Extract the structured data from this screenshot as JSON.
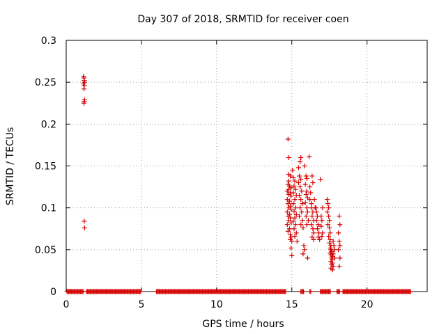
{
  "chart_data": {
    "type": "scatter",
    "title": "Day 307 of 2018, SRMTID for receiver coen",
    "xlabel": "GPS time / hours",
    "ylabel": "SRMTID / TECUs",
    "xlim": [
      0,
      24
    ],
    "ylim": [
      0,
      0.3
    ],
    "xticks": [
      0,
      5,
      10,
      15,
      20
    ],
    "xtick_labels": [
      "0",
      "5",
      "10",
      "15",
      "20"
    ],
    "yticks": [
      0,
      0.05,
      0.1,
      0.15,
      0.2,
      0.25,
      0.3
    ],
    "ytick_labels": [
      "0",
      "0.05",
      "0.1",
      "0.15",
      "0.2",
      "0.25",
      "0.3"
    ],
    "grid": true,
    "marker": "+",
    "color": "#d40000",
    "series": [
      {
        "name": "SRMTID",
        "zero_runs": [
          [
            0.05,
            1.15
          ],
          [
            1.35,
            5.0
          ],
          [
            6.0,
            14.6
          ],
          [
            15.6,
            15.8
          ],
          [
            16.2,
            16.3
          ],
          [
            16.9,
            17.6
          ],
          [
            18.0,
            18.2
          ],
          [
            18.4,
            22.9
          ]
        ],
        "points": [
          [
            1.15,
            0.257
          ],
          [
            1.18,
            0.255
          ],
          [
            1.2,
            0.252
          ],
          [
            1.22,
            0.25
          ],
          [
            1.15,
            0.248
          ],
          [
            1.2,
            0.246
          ],
          [
            1.18,
            0.242
          ],
          [
            1.22,
            0.229
          ],
          [
            1.2,
            0.227
          ],
          [
            1.18,
            0.225
          ],
          [
            1.2,
            0.084
          ],
          [
            1.22,
            0.076
          ],
          [
            14.75,
            0.182
          ],
          [
            14.8,
            0.16
          ],
          [
            15.05,
            0.145
          ],
          [
            14.8,
            0.14
          ],
          [
            14.9,
            0.138
          ],
          [
            14.8,
            0.132
          ],
          [
            14.75,
            0.128
          ],
          [
            14.85,
            0.126
          ],
          [
            14.95,
            0.124
          ],
          [
            14.8,
            0.122
          ],
          [
            14.7,
            0.12
          ],
          [
            14.9,
            0.118
          ],
          [
            14.8,
            0.116
          ],
          [
            14.95,
            0.114
          ],
          [
            14.7,
            0.11
          ],
          [
            14.85,
            0.108
          ],
          [
            14.75,
            0.105
          ],
          [
            14.9,
            0.102
          ],
          [
            14.8,
            0.1
          ],
          [
            14.95,
            0.098
          ],
          [
            14.7,
            0.095
          ],
          [
            14.85,
            0.092
          ],
          [
            14.75,
            0.09
          ],
          [
            14.9,
            0.088
          ],
          [
            14.8,
            0.085
          ],
          [
            14.95,
            0.082
          ],
          [
            14.7,
            0.08
          ],
          [
            14.85,
            0.075
          ],
          [
            14.75,
            0.072
          ],
          [
            14.9,
            0.068
          ],
          [
            14.95,
            0.065
          ],
          [
            14.9,
            0.062
          ],
          [
            15.0,
            0.06
          ],
          [
            14.95,
            0.052
          ],
          [
            15.0,
            0.043
          ],
          [
            15.1,
            0.136
          ],
          [
            15.2,
            0.132
          ],
          [
            15.15,
            0.126
          ],
          [
            15.25,
            0.122
          ],
          [
            15.1,
            0.118
          ],
          [
            15.3,
            0.115
          ],
          [
            15.2,
            0.11
          ],
          [
            15.1,
            0.105
          ],
          [
            15.25,
            0.1
          ],
          [
            15.15,
            0.096
          ],
          [
            15.3,
            0.092
          ],
          [
            15.2,
            0.088
          ],
          [
            15.1,
            0.084
          ],
          [
            15.25,
            0.08
          ],
          [
            15.15,
            0.075
          ],
          [
            15.3,
            0.07
          ],
          [
            15.2,
            0.066
          ],
          [
            15.35,
            0.06
          ],
          [
            15.45,
            0.148
          ],
          [
            15.55,
            0.155
          ],
          [
            15.6,
            0.16
          ],
          [
            15.5,
            0.138
          ],
          [
            15.6,
            0.134
          ],
          [
            15.45,
            0.13
          ],
          [
            15.55,
            0.125
          ],
          [
            15.65,
            0.12
          ],
          [
            15.5,
            0.115
          ],
          [
            15.6,
            0.11
          ],
          [
            15.7,
            0.105
          ],
          [
            15.55,
            0.1
          ],
          [
            15.65,
            0.095
          ],
          [
            15.5,
            0.09
          ],
          [
            15.7,
            0.085
          ],
          [
            15.6,
            0.08
          ],
          [
            15.75,
            0.076
          ],
          [
            15.8,
            0.055
          ],
          [
            15.85,
            0.05
          ],
          [
            15.75,
            0.045
          ],
          [
            15.85,
            0.15
          ],
          [
            15.95,
            0.138
          ],
          [
            16.0,
            0.135
          ],
          [
            15.9,
            0.128
          ],
          [
            16.0,
            0.12
          ],
          [
            15.95,
            0.116
          ],
          [
            16.05,
            0.112
          ],
          [
            15.9,
            0.106
          ],
          [
            16.0,
            0.1
          ],
          [
            16.05,
            0.095
          ],
          [
            15.95,
            0.09
          ],
          [
            16.1,
            0.085
          ],
          [
            16.0,
            0.08
          ],
          [
            16.05,
            0.04
          ],
          [
            16.15,
            0.161
          ],
          [
            16.2,
            0.125
          ],
          [
            16.25,
            0.118
          ],
          [
            16.2,
            0.11
          ],
          [
            16.3,
            0.105
          ],
          [
            16.35,
            0.138
          ],
          [
            16.4,
            0.13
          ],
          [
            16.3,
            0.1
          ],
          [
            16.4,
            0.095
          ],
          [
            16.35,
            0.09
          ],
          [
            16.45,
            0.085
          ],
          [
            16.3,
            0.08
          ],
          [
            16.4,
            0.075
          ],
          [
            16.45,
            0.07
          ],
          [
            16.35,
            0.065
          ],
          [
            16.5,
            0.11
          ],
          [
            16.55,
            0.1
          ],
          [
            16.45,
            0.062
          ],
          [
            16.6,
            0.1
          ],
          [
            16.65,
            0.095
          ],
          [
            16.7,
            0.09
          ],
          [
            16.65,
            0.085
          ],
          [
            16.75,
            0.08
          ],
          [
            16.7,
            0.075
          ],
          [
            16.8,
            0.07
          ],
          [
            16.75,
            0.065
          ],
          [
            16.85,
            0.062
          ],
          [
            16.9,
            0.134
          ],
          [
            16.95,
            0.09
          ],
          [
            17.0,
            0.085
          ],
          [
            16.95,
            0.078
          ],
          [
            17.05,
            0.07
          ],
          [
            17.0,
            0.066
          ],
          [
            17.05,
            0.1
          ],
          [
            17.35,
            0.11
          ],
          [
            17.4,
            0.105
          ],
          [
            17.45,
            0.1
          ],
          [
            17.35,
            0.095
          ],
          [
            17.45,
            0.09
          ],
          [
            17.5,
            0.085
          ],
          [
            17.4,
            0.08
          ],
          [
            17.5,
            0.076
          ],
          [
            17.55,
            0.07
          ],
          [
            17.45,
            0.066
          ],
          [
            17.55,
            0.062
          ],
          [
            17.5,
            0.058
          ],
          [
            17.6,
            0.055
          ],
          [
            17.55,
            0.052
          ],
          [
            17.6,
            0.05
          ],
          [
            17.65,
            0.048
          ],
          [
            17.55,
            0.046
          ],
          [
            17.6,
            0.044
          ],
          [
            17.7,
            0.042
          ],
          [
            17.65,
            0.04
          ],
          [
            17.7,
            0.038
          ],
          [
            17.6,
            0.036
          ],
          [
            17.7,
            0.034
          ],
          [
            17.65,
            0.032
          ],
          [
            17.75,
            0.03
          ],
          [
            17.6,
            0.028
          ],
          [
            17.7,
            0.026
          ],
          [
            17.75,
            0.06
          ],
          [
            17.8,
            0.055
          ],
          [
            17.85,
            0.05
          ],
          [
            17.75,
            0.045
          ],
          [
            17.85,
            0.04
          ],
          [
            18.15,
            0.09
          ],
          [
            18.2,
            0.08
          ],
          [
            18.1,
            0.07
          ],
          [
            18.15,
            0.06
          ],
          [
            18.2,
            0.055
          ],
          [
            18.1,
            0.05
          ],
          [
            18.2,
            0.04
          ],
          [
            18.15,
            0.03
          ]
        ]
      }
    ]
  }
}
